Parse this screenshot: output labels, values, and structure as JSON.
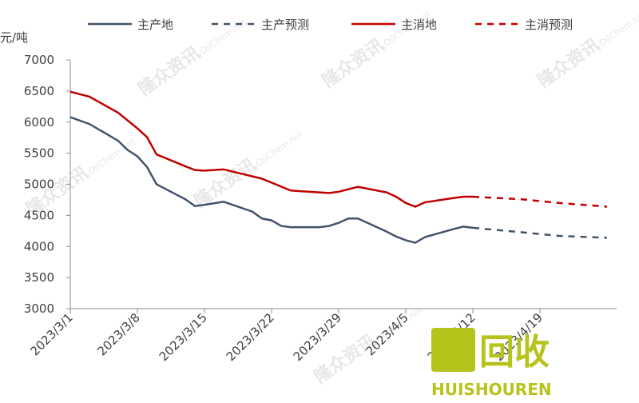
{
  "chart_data": {
    "type": "line",
    "y_label": "元/吨",
    "series": [
      {
        "name": "主产地",
        "color": "#44546a",
        "dash": false,
        "x": [
          "2023/3/1",
          "2023/3/3",
          "2023/3/6",
          "2023/3/7",
          "2023/3/8",
          "2023/3/9",
          "2023/3/10",
          "2023/3/13",
          "2023/3/14",
          "2023/3/15",
          "2023/3/17",
          "2023/3/20",
          "2023/3/21",
          "2023/3/22",
          "2023/3/23",
          "2023/3/24",
          "2023/3/27",
          "2023/3/28",
          "2023/3/29",
          "2023/3/30",
          "2023/3/31",
          "2023/4/3",
          "2023/4/4",
          "2023/4/5",
          "2023/4/6",
          "2023/4/7",
          "2023/4/10",
          "2023/4/11",
          "2023/4/12"
        ],
        "values": [
          6080,
          5970,
          5700,
          5550,
          5450,
          5280,
          5000,
          4760,
          4650,
          4670,
          4720,
          4560,
          4450,
          4420,
          4330,
          4310,
          4310,
          4330,
          4380,
          4450,
          4450,
          4240,
          4160,
          4100,
          4060,
          4150,
          4280,
          4320,
          4300
        ]
      },
      {
        "name": "主产预测",
        "color": "#44546a",
        "dash": true,
        "x": [
          "2023/4/12",
          "2023/4/17",
          "2023/4/21",
          "2023/4/26"
        ],
        "values": [
          4300,
          4230,
          4170,
          4140
        ]
      },
      {
        "name": "主消地",
        "color": "#c00000",
        "dash": false,
        "x": [
          "2023/3/1",
          "2023/3/3",
          "2023/3/6",
          "2023/3/8",
          "2023/3/9",
          "2023/3/10",
          "2023/3/13",
          "2023/3/14",
          "2023/3/15",
          "2023/3/17",
          "2023/3/21",
          "2023/3/24",
          "2023/3/27",
          "2023/3/28",
          "2023/3/29",
          "2023/3/31",
          "2023/4/3",
          "2023/4/4",
          "2023/4/5",
          "2023/4/6",
          "2023/4/7",
          "2023/4/10",
          "2023/4/11",
          "2023/4/12"
        ],
        "values": [
          6490,
          6410,
          6150,
          5900,
          5760,
          5480,
          5290,
          5230,
          5220,
          5240,
          5090,
          4900,
          4870,
          4860,
          4880,
          4960,
          4870,
          4800,
          4700,
          4640,
          4710,
          4780,
          4800,
          4800
        ]
      },
      {
        "name": "主消预测",
        "color": "#c00000",
        "dash": true,
        "x": [
          "2023/4/12",
          "2023/4/17",
          "2023/4/21",
          "2023/4/26"
        ],
        "values": [
          4800,
          4760,
          4700,
          4640
        ]
      }
    ],
    "xlim": [
      "2023/3/1",
      "2023/4/27"
    ],
    "xticks": [
      "2023/3/1",
      "2023/3/8",
      "2023/3/15",
      "2023/3/22",
      "2023/3/29",
      "2023/4/5",
      "2023/4/12",
      "2023/4/19"
    ],
    "ylim": [
      3000,
      7000
    ],
    "yticks": [
      3000,
      3500,
      4000,
      4500,
      5000,
      5500,
      6000,
      6500,
      7000
    ],
    "legend": "top",
    "watermark": {
      "text": "隆众资讯",
      "site": "OilChem.net",
      "logo": "回收",
      "logo_sub": "HUISHOUREN"
    }
  }
}
